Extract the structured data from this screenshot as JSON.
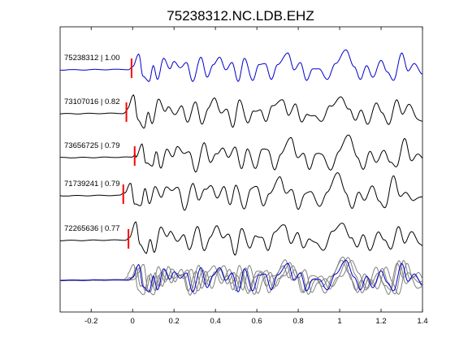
{
  "chart_data": {
    "type": "line",
    "title": "75238312.NC.LDB.EHZ",
    "xlabel": "",
    "ylabel": "",
    "xlim": [
      -0.35,
      1.4
    ],
    "xticks": [
      -0.2,
      0,
      0.2,
      0.4,
      0.6,
      0.8,
      1,
      1.2,
      1.4
    ],
    "xtick_labels": [
      "-0.2",
      "0",
      "0.2",
      "0.4",
      "0.6",
      "0.8",
      "1",
      "1.2",
      "1.4"
    ],
    "yticks_shown": false,
    "grid": false,
    "colors": {
      "master": "#0000cc",
      "trace": "#000000",
      "pick": "#ff0000",
      "overlay": "#808080"
    },
    "traces": [
      {
        "name": "75238312 | 1.00",
        "pick_time": -0.005,
        "color": "blue"
      },
      {
        "name": "73107016 | 0.82",
        "pick_time": -0.03,
        "color": "black"
      },
      {
        "name": "73656725 | 0.79",
        "pick_time": 0.01,
        "color": "black"
      },
      {
        "name": "71739241 | 0.79",
        "pick_time": -0.045,
        "color": "black"
      },
      {
        "name": "72265636 | 0.77",
        "pick_time": -0.02,
        "color": "black"
      }
    ],
    "waveform_keypoints": [
      [
        -0.35,
        0
      ],
      [
        -0.02,
        0.02
      ],
      [
        0.0,
        0.15
      ],
      [
        0.03,
        0.75
      ],
      [
        0.05,
        -0.3
      ],
      [
        0.08,
        -0.55
      ],
      [
        0.1,
        0.2
      ],
      [
        0.12,
        -0.45
      ],
      [
        0.15,
        0.55
      ],
      [
        0.18,
        0.05
      ],
      [
        0.2,
        0.4
      ],
      [
        0.23,
        0.1
      ],
      [
        0.26,
        0.35
      ],
      [
        0.29,
        -0.55
      ],
      [
        0.33,
        0.6
      ],
      [
        0.36,
        -0.35
      ],
      [
        0.39,
        0.25
      ],
      [
        0.42,
        0.6
      ],
      [
        0.45,
        0.0
      ],
      [
        0.48,
        0.35
      ],
      [
        0.51,
        -0.55
      ],
      [
        0.54,
        0.55
      ],
      [
        0.58,
        -0.5
      ],
      [
        0.61,
        0.25
      ],
      [
        0.64,
        0.3
      ],
      [
        0.67,
        -0.45
      ],
      [
        0.7,
        0.25
      ],
      [
        0.75,
        0.8
      ],
      [
        0.78,
        0.0
      ],
      [
        0.81,
        0.35
      ],
      [
        0.84,
        -0.5
      ],
      [
        0.87,
        0.05
      ],
      [
        0.9,
        0.05
      ],
      [
        0.94,
        -0.45
      ],
      [
        0.98,
        0.3
      ],
      [
        1.03,
        0.95
      ],
      [
        1.07,
        0.15
      ],
      [
        1.1,
        -0.45
      ],
      [
        1.13,
        0.2
      ],
      [
        1.16,
        -0.35
      ],
      [
        1.2,
        0.45
      ],
      [
        1.23,
        -0.1
      ],
      [
        1.26,
        -0.5
      ],
      [
        1.3,
        0.8
      ],
      [
        1.33,
        -0.05
      ],
      [
        1.36,
        0.3
      ],
      [
        1.4,
        -0.2
      ]
    ],
    "overlay_label": ""
  }
}
